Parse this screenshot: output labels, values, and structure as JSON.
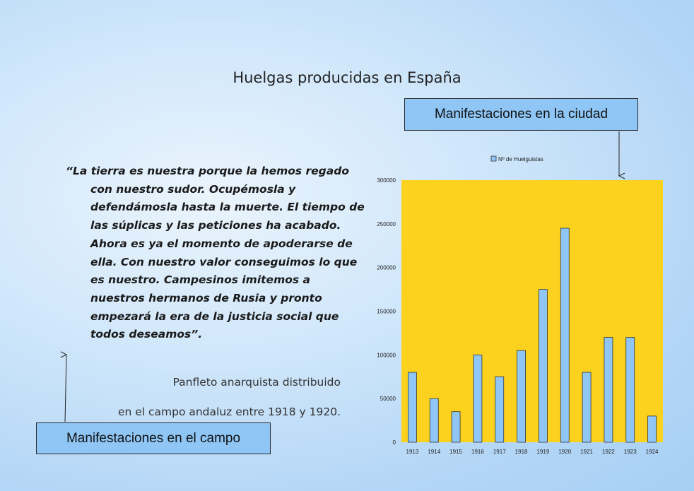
{
  "title": "Huelgas producidas en España",
  "quote": "“La tierra es nuestra porque la hemos regado con nuestro sudor. Ocupémosla y defendámosla hasta la muerte. El tiempo de las súplicas y las peticiones ha acabado. Ahora es ya el momento de apoderarse de ella. Con nuestro valor conseguimos lo que es nuestro. Campesinos imitemos a nuestros hermanos de Rusia y pronto empezará la era de la justicia social que todos deseamos”.",
  "attribution_line1": "Panfleto anarquista distribuido",
  "attribution_line2": "en el campo andaluz entre 1918 y 1920.",
  "labels": {
    "city": "Manifestaciones en la ciudad",
    "field": "Manifestaciones en el campo"
  },
  "colors": {
    "plot_background": "#fdd21f",
    "bar_fill": "#8fc6f6",
    "bar_stroke": "#333333"
  },
  "chart_data": {
    "type": "bar",
    "categories": [
      "1913",
      "1914",
      "1915",
      "1916",
      "1917",
      "1918",
      "1919",
      "1920",
      "1921",
      "1922",
      "1923",
      "1924"
    ],
    "series": [
      {
        "name": "Nº de Huelguistas",
        "values": [
          80000,
          50000,
          35000,
          100000,
          75000,
          105000,
          175000,
          245000,
          80000,
          120000,
          120000,
          30000
        ]
      }
    ],
    "yticks": [
      "0",
      "50000",
      "100000",
      "150000",
      "200000",
      "250000",
      "300000"
    ],
    "ylim": [
      0,
      300000
    ],
    "legend": "top",
    "grid": false
  }
}
